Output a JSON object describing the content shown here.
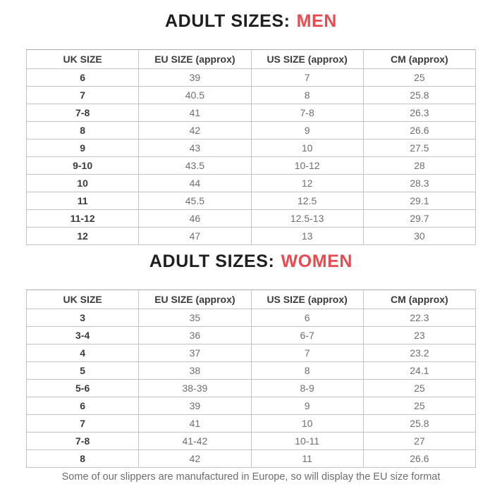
{
  "accent_color": "#e84b4f",
  "sections": [
    {
      "title_prefix": "ADULT SIZES:",
      "title_highlight": "MEN",
      "table": {
        "headers": [
          "UK SIZE",
          "EU SIZE (approx)",
          "US SIZE (approx)",
          "CM (approx)"
        ],
        "rows": [
          [
            "6",
            "39",
            "7",
            "25"
          ],
          [
            "7",
            "40.5",
            "8",
            "25.8"
          ],
          [
            "7-8",
            "41",
            "7-8",
            "26.3"
          ],
          [
            "8",
            "42",
            "9",
            "26.6"
          ],
          [
            "9",
            "43",
            "10",
            "27.5"
          ],
          [
            "9-10",
            "43.5",
            "10-12",
            "28"
          ],
          [
            "10",
            "44",
            "12",
            "28.3"
          ],
          [
            "11",
            "45.5",
            "12.5",
            "29.1"
          ],
          [
            "11-12",
            "46",
            "12.5-13",
            "29.7"
          ],
          [
            "12",
            "47",
            "13",
            "30"
          ]
        ]
      }
    },
    {
      "title_prefix": "ADULT SIZES:",
      "title_highlight": "WOMEN",
      "table": {
        "headers": [
          "UK SIZE",
          "EU SIZE (approx)",
          "US SIZE (approx)",
          "CM (approx)"
        ],
        "rows": [
          [
            "3",
            "35",
            "6",
            "22.3"
          ],
          [
            "3-4",
            "36",
            "6-7",
            "23"
          ],
          [
            "4",
            "37",
            "7",
            "23.2"
          ],
          [
            "5",
            "38",
            "8",
            "24.1"
          ],
          [
            "5-6",
            "38-39",
            "8-9",
            "25"
          ],
          [
            "6",
            "39",
            "9",
            "25"
          ],
          [
            "7",
            "41",
            "10",
            "25.8"
          ],
          [
            "7-8",
            "41-42",
            "10-11",
            "27"
          ],
          [
            "8",
            "42",
            "11",
            "26.6"
          ]
        ]
      }
    }
  ],
  "footer_note": "Some of our slippers are manufactured in Europe, so will display the EU size format"
}
